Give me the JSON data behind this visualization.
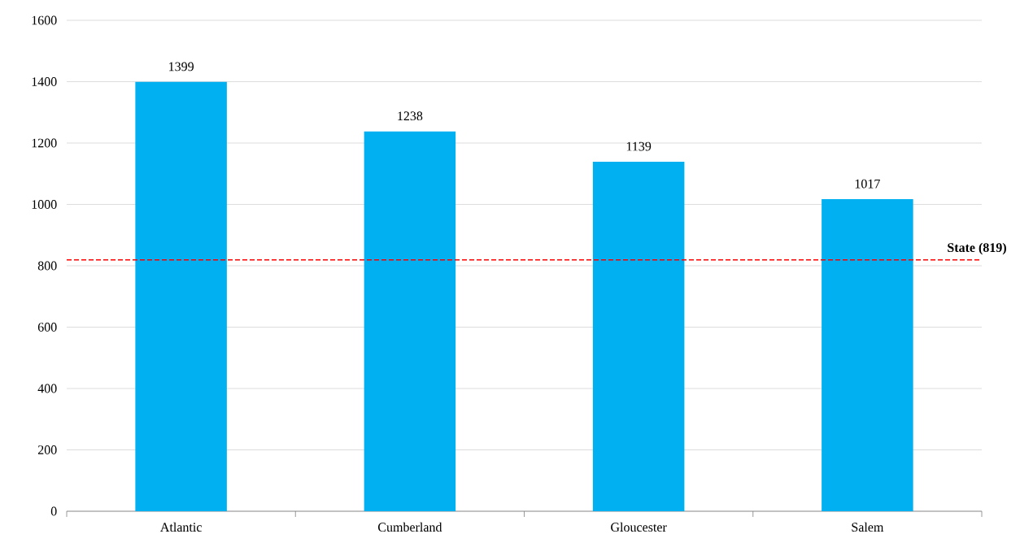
{
  "chart_data": {
    "type": "bar",
    "categories": [
      "Atlantic",
      "Cumberland",
      "Gloucester",
      "Salem"
    ],
    "values": [
      1399,
      1238,
      1139,
      1017
    ],
    "color": "#00b0f0",
    "data_labels": true,
    "ylim": [
      0,
      1600
    ],
    "yticks": [
      0,
      200,
      400,
      600,
      800,
      1000,
      1200,
      1400,
      1600
    ],
    "grid": "y",
    "ref_lines": [
      {
        "axis": "y",
        "value": 819,
        "label": "State (819)",
        "color": "#ff0000",
        "line_style": "dashed"
      }
    ]
  }
}
